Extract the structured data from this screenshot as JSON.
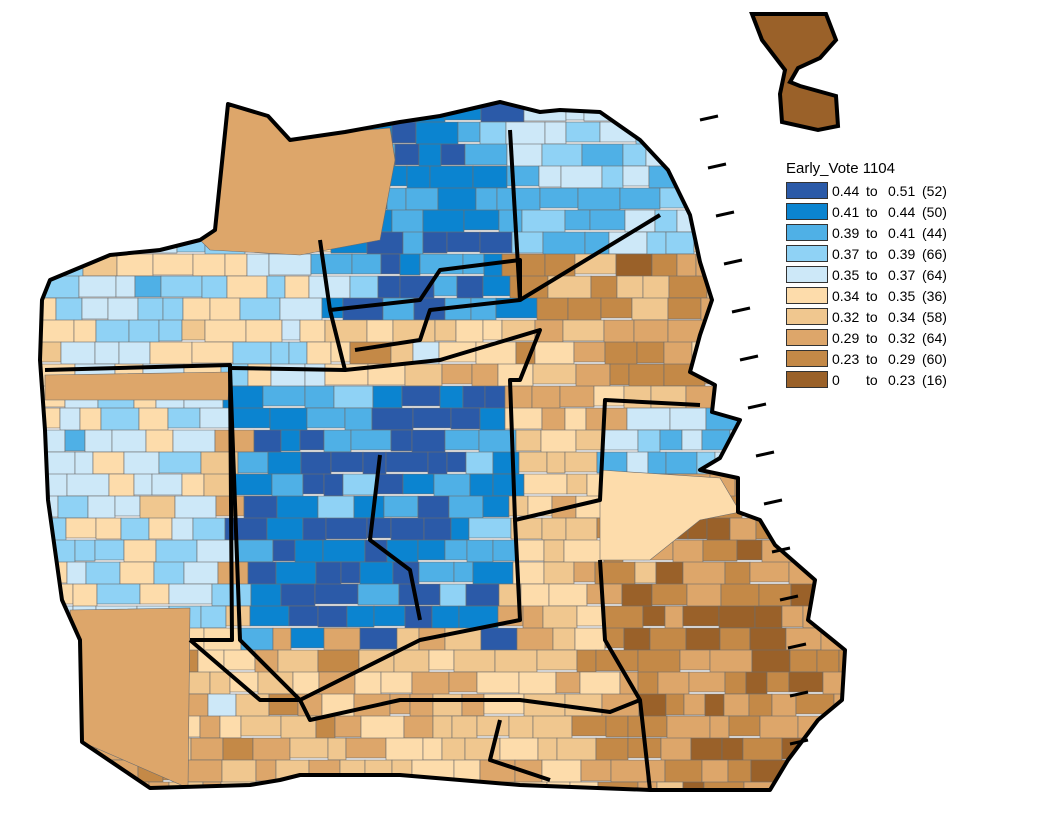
{
  "legend": {
    "title": "Early_Vote 1104",
    "to_word": "to",
    "classes": [
      {
        "low": "0.44",
        "high": "0.51",
        "count": "(52)",
        "color": "#2b5aa8"
      },
      {
        "low": "0.41",
        "high": "0.44",
        "count": "(50)",
        "color": "#0b84d0"
      },
      {
        "low": "0.39",
        "high": "0.41",
        "count": "(44)",
        "color": "#4fb0e6"
      },
      {
        "low": "0.37",
        "high": "0.39",
        "count": "(66)",
        "color": "#8fd2f5"
      },
      {
        "low": "0.35",
        "high": "0.37",
        "count": "(64)",
        "color": "#cde8f8"
      },
      {
        "low": "0.34",
        "high": "0.35",
        "count": "(36)",
        "color": "#fddcab"
      },
      {
        "low": "0.32",
        "high": "0.34",
        "count": "(58)",
        "color": "#f0c78f"
      },
      {
        "low": "0.29",
        "high": "0.32",
        "count": "(64)",
        "color": "#dda66a"
      },
      {
        "low": "0.23",
        "high": "0.29",
        "count": "(60)",
        "color": "#c48947"
      },
      {
        "low": "0",
        "high": "0.23",
        "count": "(16)",
        "color": "#9a6129"
      }
    ]
  }
}
